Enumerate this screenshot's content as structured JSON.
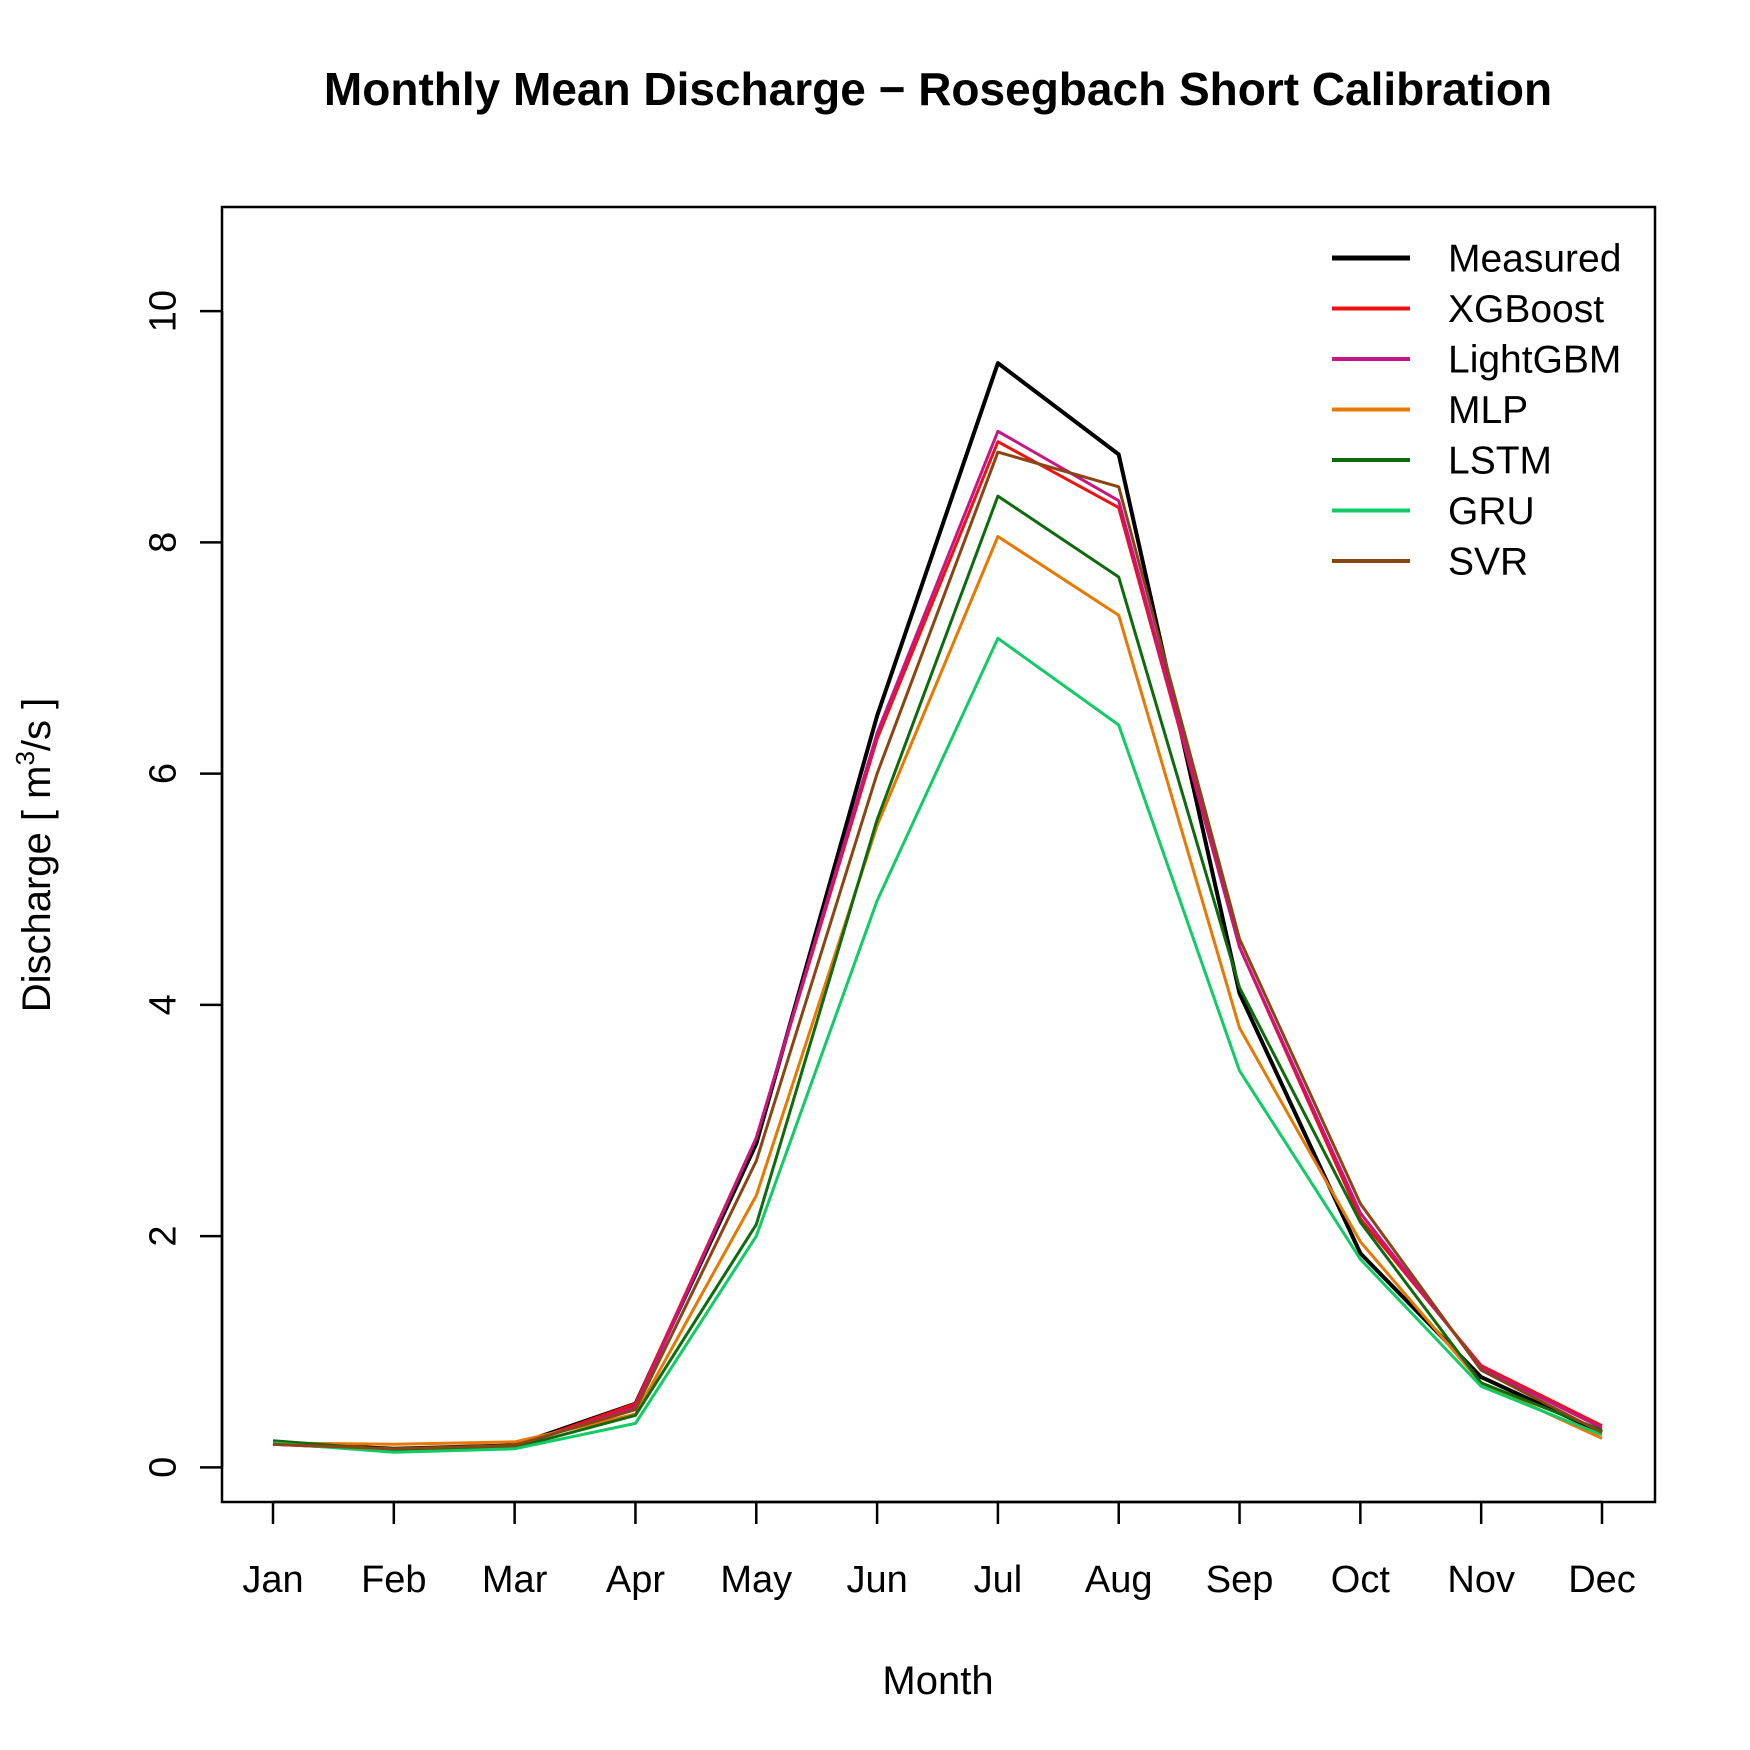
{
  "chart_data": {
    "type": "line",
    "title": "Monthly Mean Discharge − Rosegbach Short Calibration",
    "xlabel": "Month",
    "ylabel": "Discharge [ m³/s ]",
    "ylabel_parts": {
      "prefix": "Discharge [ m",
      "sup": "3",
      "suffix": "/s ]"
    },
    "categories": [
      "Jan",
      "Feb",
      "Mar",
      "Apr",
      "May",
      "Jun",
      "Jul",
      "Aug",
      "Sep",
      "Oct",
      "Nov",
      "Dec"
    ],
    "ylim": [
      -0.3,
      10.9
    ],
    "yticks": [
      0,
      2,
      4,
      6,
      8,
      10
    ],
    "ytick_labels": [
      "0",
      "2",
      "4",
      "6",
      "8",
      "10"
    ],
    "grid": false,
    "legend_position": "top-right",
    "series": [
      {
        "name": "Measured",
        "color": "#000000",
        "width": 4,
        "values": [
          0.21,
          0.16,
          0.19,
          0.55,
          2.8,
          6.5,
          9.55,
          8.76,
          4.1,
          1.85,
          0.78,
          0.3
        ]
      },
      {
        "name": "XGBoost",
        "color": "#ee1111",
        "width": 3,
        "values": [
          0.2,
          0.15,
          0.18,
          0.55,
          2.85,
          6.3,
          8.87,
          8.3,
          4.5,
          2.15,
          0.88,
          0.36
        ]
      },
      {
        "name": "LightGBM",
        "color": "#c71585",
        "width": 3,
        "values": [
          0.2,
          0.15,
          0.18,
          0.52,
          2.85,
          6.35,
          8.96,
          8.36,
          4.5,
          2.2,
          0.86,
          0.34
        ]
      },
      {
        "name": "MLP",
        "color": "#e87800",
        "width": 3,
        "values": [
          0.21,
          0.2,
          0.22,
          0.46,
          2.35,
          5.55,
          8.05,
          7.37,
          3.8,
          1.95,
          0.73,
          0.25
        ]
      },
      {
        "name": "LSTM",
        "color": "#0d6b0d",
        "width": 3,
        "values": [
          0.23,
          0.15,
          0.17,
          0.45,
          2.1,
          5.6,
          8.4,
          7.7,
          4.15,
          2.12,
          0.73,
          0.32
        ]
      },
      {
        "name": "GRU",
        "color": "#11cc66",
        "width": 3,
        "values": [
          0.21,
          0.13,
          0.16,
          0.38,
          2.0,
          4.9,
          7.17,
          6.42,
          3.43,
          1.8,
          0.7,
          0.28
        ]
      },
      {
        "name": "SVR",
        "color": "#8b4513",
        "width": 3,
        "values": [
          0.2,
          0.16,
          0.19,
          0.5,
          2.65,
          6.0,
          8.78,
          8.48,
          4.57,
          2.28,
          0.84,
          0.3
        ]
      }
    ]
  }
}
